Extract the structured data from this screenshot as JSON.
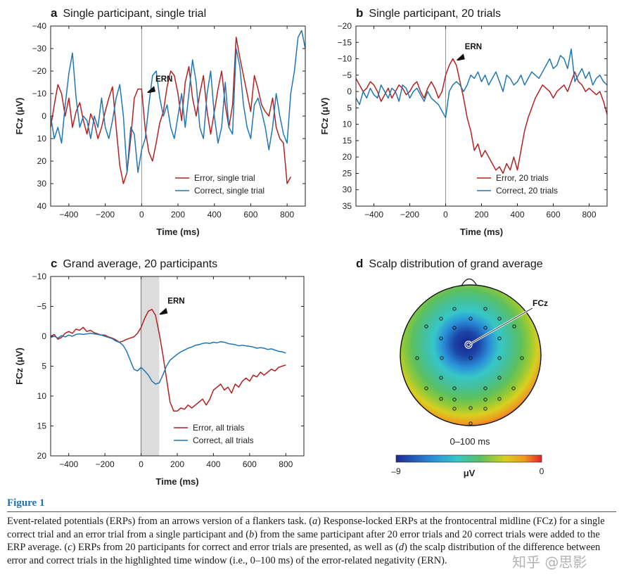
{
  "panels": {
    "a": {
      "letter": "a",
      "title": "Single participant, single trial"
    },
    "b": {
      "letter": "b",
      "title": "Single participant, 20 trials"
    },
    "c": {
      "letter": "c",
      "title": "Grand average, 20 participants"
    },
    "d": {
      "letter": "d",
      "title": "Scalp distribution of grand average"
    }
  },
  "chart_data": [
    {
      "id": "a",
      "type": "line",
      "xlabel": "Time (ms)",
      "ylabel": "FCz (μV)",
      "xlim": [
        -500,
        900
      ],
      "ylim": [
        40,
        -40
      ],
      "y_inverted": true,
      "xticks": [
        -400,
        -200,
        0,
        200,
        400,
        600,
        800
      ],
      "yticks": [
        -40,
        -30,
        -20,
        -10,
        0,
        10,
        20,
        30,
        40
      ],
      "annotation": {
        "text": "ERN",
        "x": 30,
        "y": -14
      },
      "series": [
        {
          "name": "Error, single trial",
          "color": "#b22222",
          "x": [
            -500,
            -480,
            -460,
            -440,
            -420,
            -400,
            -380,
            -360,
            -340,
            -320,
            -300,
            -280,
            -260,
            -240,
            -220,
            -200,
            -180,
            -160,
            -140,
            -120,
            -100,
            -80,
            -60,
            -40,
            -20,
            0,
            20,
            40,
            60,
            80,
            100,
            120,
            140,
            160,
            180,
            200,
            220,
            240,
            260,
            280,
            300,
            320,
            340,
            360,
            380,
            400,
            420,
            440,
            460,
            480,
            500,
            520,
            540,
            560,
            580,
            600,
            620,
            640,
            660,
            680,
            700,
            720,
            740,
            760,
            780,
            800,
            820
          ],
          "y": [
            5,
            -5,
            -14,
            -10,
            0,
            -8,
            5,
            -2,
            -6,
            2,
            8,
            -1,
            3,
            10,
            5,
            -2,
            -8,
            -13,
            5,
            22,
            30,
            25,
            10,
            -8,
            -12,
            -12,
            6,
            16,
            20,
            12,
            3,
            -2,
            -13,
            -20,
            -18,
            -10,
            2,
            -15,
            -22,
            -8,
            0,
            -10,
            -18,
            -2,
            8,
            -2,
            -12,
            -20,
            -5,
            5,
            -5,
            -35,
            -26,
            -18,
            -10,
            -2,
            -18,
            -12,
            -5,
            -2,
            0,
            -8,
            5,
            10,
            12,
            30,
            27
          ]
        },
        {
          "name": "Correct, single trial",
          "color": "#1f77b4",
          "x": [
            -500,
            -480,
            -460,
            -440,
            -420,
            -400,
            -380,
            -360,
            -340,
            -320,
            -300,
            -280,
            -260,
            -240,
            -220,
            -200,
            -180,
            -160,
            -140,
            -120,
            -100,
            -80,
            -60,
            -40,
            -20,
            0,
            20,
            40,
            60,
            80,
            100,
            120,
            140,
            160,
            180,
            200,
            220,
            240,
            260,
            280,
            300,
            320,
            340,
            360,
            380,
            400,
            420,
            440,
            460,
            480,
            500,
            520,
            540,
            560,
            580,
            600,
            620,
            640,
            660,
            680,
            700,
            720,
            740,
            760,
            780,
            800,
            820,
            840,
            860,
            880,
            900
          ],
          "y": [
            0,
            10,
            5,
            12,
            -5,
            -19,
            -28,
            -8,
            5,
            0,
            2,
            10,
            0,
            5,
            -8,
            5,
            10,
            2,
            -8,
            -14,
            0,
            25,
            5,
            8,
            25,
            15,
            10,
            -5,
            -18,
            -20,
            -8,
            0,
            -5,
            5,
            10,
            0,
            -10,
            5,
            -10,
            -25,
            -15,
            5,
            10,
            -10,
            -20,
            0,
            12,
            5,
            -15,
            5,
            8,
            -30,
            -22,
            -5,
            5,
            10,
            -5,
            -8,
            -2,
            5,
            15,
            5,
            -10,
            0,
            8,
            12,
            -10,
            -20,
            -35,
            -38,
            -30
          ]
        }
      ],
      "legend": {
        "position": "lower-right",
        "entries": [
          "Error, single trial",
          "Correct, single trial"
        ]
      }
    },
    {
      "id": "b",
      "type": "line",
      "xlabel": "Time (ms)",
      "ylabel": "FCz (μV)",
      "xlim": [
        -500,
        900
      ],
      "ylim": [
        35,
        -20
      ],
      "y_inverted": true,
      "xticks": [
        -400,
        -200,
        0,
        200,
        400,
        600,
        800
      ],
      "yticks": [
        -20,
        -15,
        -10,
        -5,
        0,
        5,
        10,
        15,
        20,
        25,
        30,
        35
      ],
      "annotation": {
        "text": "ERN",
        "x": 60,
        "y": -12
      },
      "series": [
        {
          "name": "Error, 20 trials",
          "color": "#b22222",
          "x": [
            -500,
            -480,
            -460,
            -440,
            -420,
            -400,
            -380,
            -360,
            -340,
            -320,
            -300,
            -280,
            -260,
            -240,
            -220,
            -200,
            -180,
            -160,
            -140,
            -120,
            -100,
            -80,
            -60,
            -40,
            -20,
            0,
            20,
            40,
            60,
            80,
            100,
            120,
            140,
            160,
            180,
            200,
            220,
            240,
            260,
            280,
            300,
            320,
            340,
            360,
            380,
            400,
            420,
            440,
            460,
            480,
            500,
            520,
            540,
            560,
            580,
            600,
            620,
            640,
            660,
            680,
            700,
            720,
            740,
            760,
            780,
            800,
            820,
            840,
            860,
            880,
            900
          ],
          "y": [
            -4,
            -2,
            0,
            -1,
            -3,
            -2,
            0,
            3,
            1,
            -1,
            2,
            0,
            -2,
            -1,
            1,
            0,
            -2,
            -3,
            0,
            2,
            -1,
            -3,
            -1,
            2,
            0,
            -5,
            -8,
            -10,
            -8,
            -3,
            2,
            8,
            12,
            18,
            16,
            20,
            18,
            20,
            22,
            24,
            23,
            25,
            22,
            24,
            20,
            24,
            18,
            12,
            8,
            5,
            2,
            0,
            -2,
            -1,
            0,
            2,
            0,
            -1,
            -2,
            0,
            -3,
            -6,
            -3,
            -2,
            0,
            -1,
            0,
            1,
            0,
            3,
            7
          ]
        },
        {
          "name": "Correct, 20 trials",
          "color": "#1f77b4",
          "x": [
            -500,
            -480,
            -460,
            -440,
            -420,
            -400,
            -380,
            -360,
            -340,
            -320,
            -300,
            -280,
            -260,
            -240,
            -220,
            -200,
            -180,
            -160,
            -140,
            -120,
            -100,
            -80,
            -60,
            -40,
            -20,
            0,
            20,
            40,
            60,
            80,
            100,
            120,
            140,
            160,
            180,
            200,
            220,
            240,
            260,
            280,
            300,
            320,
            340,
            360,
            380,
            400,
            420,
            440,
            460,
            480,
            500,
            520,
            540,
            560,
            580,
            600,
            620,
            640,
            660,
            680,
            700,
            720,
            740,
            760,
            780,
            800,
            820,
            840,
            860,
            880,
            900
          ],
          "y": [
            2,
            4,
            0,
            2,
            -1,
            1,
            2,
            -2,
            0,
            2,
            -1,
            0,
            3,
            -2,
            -1,
            2,
            0,
            -1,
            1,
            3,
            0,
            2,
            3,
            4,
            6,
            8,
            0,
            -2,
            -3,
            -2,
            0,
            -2,
            -5,
            -4,
            -6,
            -3,
            -5,
            -2,
            -4,
            -6,
            -3,
            0,
            -5,
            -4,
            -2,
            -3,
            -5,
            -2,
            -4,
            -6,
            -5,
            -4,
            -6,
            -8,
            -10,
            -7,
            -8,
            -11,
            -10,
            -7,
            -13,
            -3,
            -5,
            -7,
            -4,
            -6,
            -2,
            -4,
            -5,
            -3,
            -2
          ]
        }
      ],
      "legend": {
        "position": "lower-right",
        "entries": [
          "Error, 20 trials",
          "Correct, 20 trials"
        ]
      }
    },
    {
      "id": "c",
      "type": "line",
      "xlabel": "Time (ms)",
      "ylabel": "FCz (μV)",
      "xlim": [
        -500,
        900
      ],
      "ylim": [
        20,
        -10
      ],
      "y_inverted": true,
      "xticks": [
        -400,
        -200,
        0,
        200,
        400,
        600,
        800
      ],
      "yticks": [
        -10,
        -5,
        0,
        5,
        10,
        15,
        20
      ],
      "highlight": {
        "from": 0,
        "to": 100
      },
      "annotation": {
        "text": "ERN",
        "x": 100,
        "y": -5
      },
      "series": [
        {
          "name": "Error, all trials",
          "color": "#b22222",
          "x": [
            -500,
            -480,
            -460,
            -440,
            -420,
            -400,
            -380,
            -360,
            -340,
            -320,
            -300,
            -280,
            -260,
            -240,
            -220,
            -200,
            -180,
            -160,
            -140,
            -120,
            -100,
            -80,
            -60,
            -40,
            -20,
            0,
            20,
            40,
            60,
            80,
            100,
            120,
            140,
            160,
            180,
            200,
            220,
            240,
            260,
            280,
            300,
            320,
            340,
            360,
            380,
            400,
            420,
            440,
            460,
            480,
            500,
            520,
            540,
            560,
            580,
            600,
            620,
            640,
            660,
            680,
            700,
            720,
            740,
            760,
            780,
            800
          ],
          "y": [
            0,
            -0.3,
            0.5,
            0.2,
            -0.5,
            -0.8,
            -0.5,
            -1.2,
            -1.0,
            -1.5,
            -0.8,
            -1.0,
            -0.6,
            -0.4,
            -0.2,
            -0.2,
            0.1,
            0.3,
            0.6,
            1.0,
            0.8,
            0.5,
            0.3,
            0.1,
            -0.5,
            -1.5,
            -3.0,
            -4.2,
            -4.5,
            -3.5,
            -0.5,
            3.0,
            7.0,
            11.0,
            12.5,
            12.5,
            12.0,
            12.2,
            11.5,
            12.0,
            11.5,
            11.0,
            10.5,
            11.5,
            10.5,
            9.0,
            8.5,
            8.0,
            9.0,
            8.5,
            9.5,
            8.0,
            8.5,
            7.5,
            7.0,
            7.5,
            6.5,
            6.8,
            6.0,
            6.5,
            6.0,
            5.5,
            5.8,
            5.2,
            5.0,
            4.8
          ]
        },
        {
          "name": "Correct, all trials",
          "color": "#1f77b4",
          "x": [
            -500,
            -480,
            -460,
            -440,
            -420,
            -400,
            -380,
            -360,
            -340,
            -320,
            -300,
            -280,
            -260,
            -240,
            -220,
            -200,
            -180,
            -160,
            -140,
            -120,
            -100,
            -80,
            -60,
            -40,
            -20,
            0,
            20,
            40,
            60,
            80,
            100,
            120,
            140,
            160,
            180,
            200,
            220,
            240,
            260,
            280,
            300,
            320,
            340,
            360,
            380,
            400,
            420,
            440,
            460,
            480,
            500,
            520,
            540,
            560,
            580,
            600,
            620,
            640,
            660,
            680,
            700,
            720,
            740,
            760,
            780,
            800
          ],
          "y": [
            0.2,
            0,
            0.3,
            -0.1,
            0.1,
            -0.2,
            0,
            -0.3,
            -0.4,
            -0.3,
            -0.4,
            -0.5,
            -0.4,
            -0.3,
            -0.2,
            0,
            0.2,
            0.4,
            0.8,
            1.0,
            1.5,
            2.5,
            4.0,
            5.5,
            5.8,
            5.2,
            5.8,
            6.5,
            7.5,
            8.0,
            7.8,
            6.5,
            5.0,
            4.0,
            3.5,
            3.0,
            2.6,
            2.3,
            2.0,
            1.8,
            1.5,
            1.4,
            1.2,
            1.1,
            1.2,
            1.0,
            1.1,
            0.9,
            1.0,
            1.2,
            1.3,
            1.4,
            1.6,
            1.5,
            1.6,
            1.7,
            1.8,
            2.0,
            1.9,
            2.0,
            2.2,
            2.1,
            2.3,
            2.5,
            2.6,
            2.8
          ]
        }
      ],
      "legend": {
        "position": "lower-right",
        "entries": [
          "Error, all trials",
          "Correct, all trials"
        ]
      }
    },
    {
      "id": "d",
      "type": "heatmap",
      "title": "Scalp distribution of grand average",
      "time_window": "0–100 ms",
      "electrode_label": "FCz",
      "colorbar": {
        "min": "–9",
        "max": "0",
        "unit": "μV"
      }
    }
  ],
  "figure": {
    "label": "Figure 1",
    "caption_parts": [
      {
        "t": "Event-related potentials (ERPs) from an arrows version of a flankers task. ("
      },
      {
        "t": "a",
        "i": true
      },
      {
        "t": ") Response-locked ERPs at the frontocentral midline (FCz) for a single correct trial and an error trial from a single participant and ("
      },
      {
        "t": "b",
        "i": true
      },
      {
        "t": ") from the same participant after 20 error trials and 20 correct trials were added to the ERP average. ("
      },
      {
        "t": "c",
        "i": true
      },
      {
        "t": ") ERPs from 20 participants for correct and error trials are presented, as well as ("
      },
      {
        "t": "d",
        "i": true
      },
      {
        "t": ") the scalp distribution of the difference between error and correct trials in the highlighted time window (i.e., 0–100 ms) of the error-related negativity (ERN)."
      }
    ],
    "watermark": "知乎 @思影"
  },
  "colors": {
    "error": "#b22222",
    "correct": "#1f77b4",
    "caption_label": "#1f6fb5"
  }
}
